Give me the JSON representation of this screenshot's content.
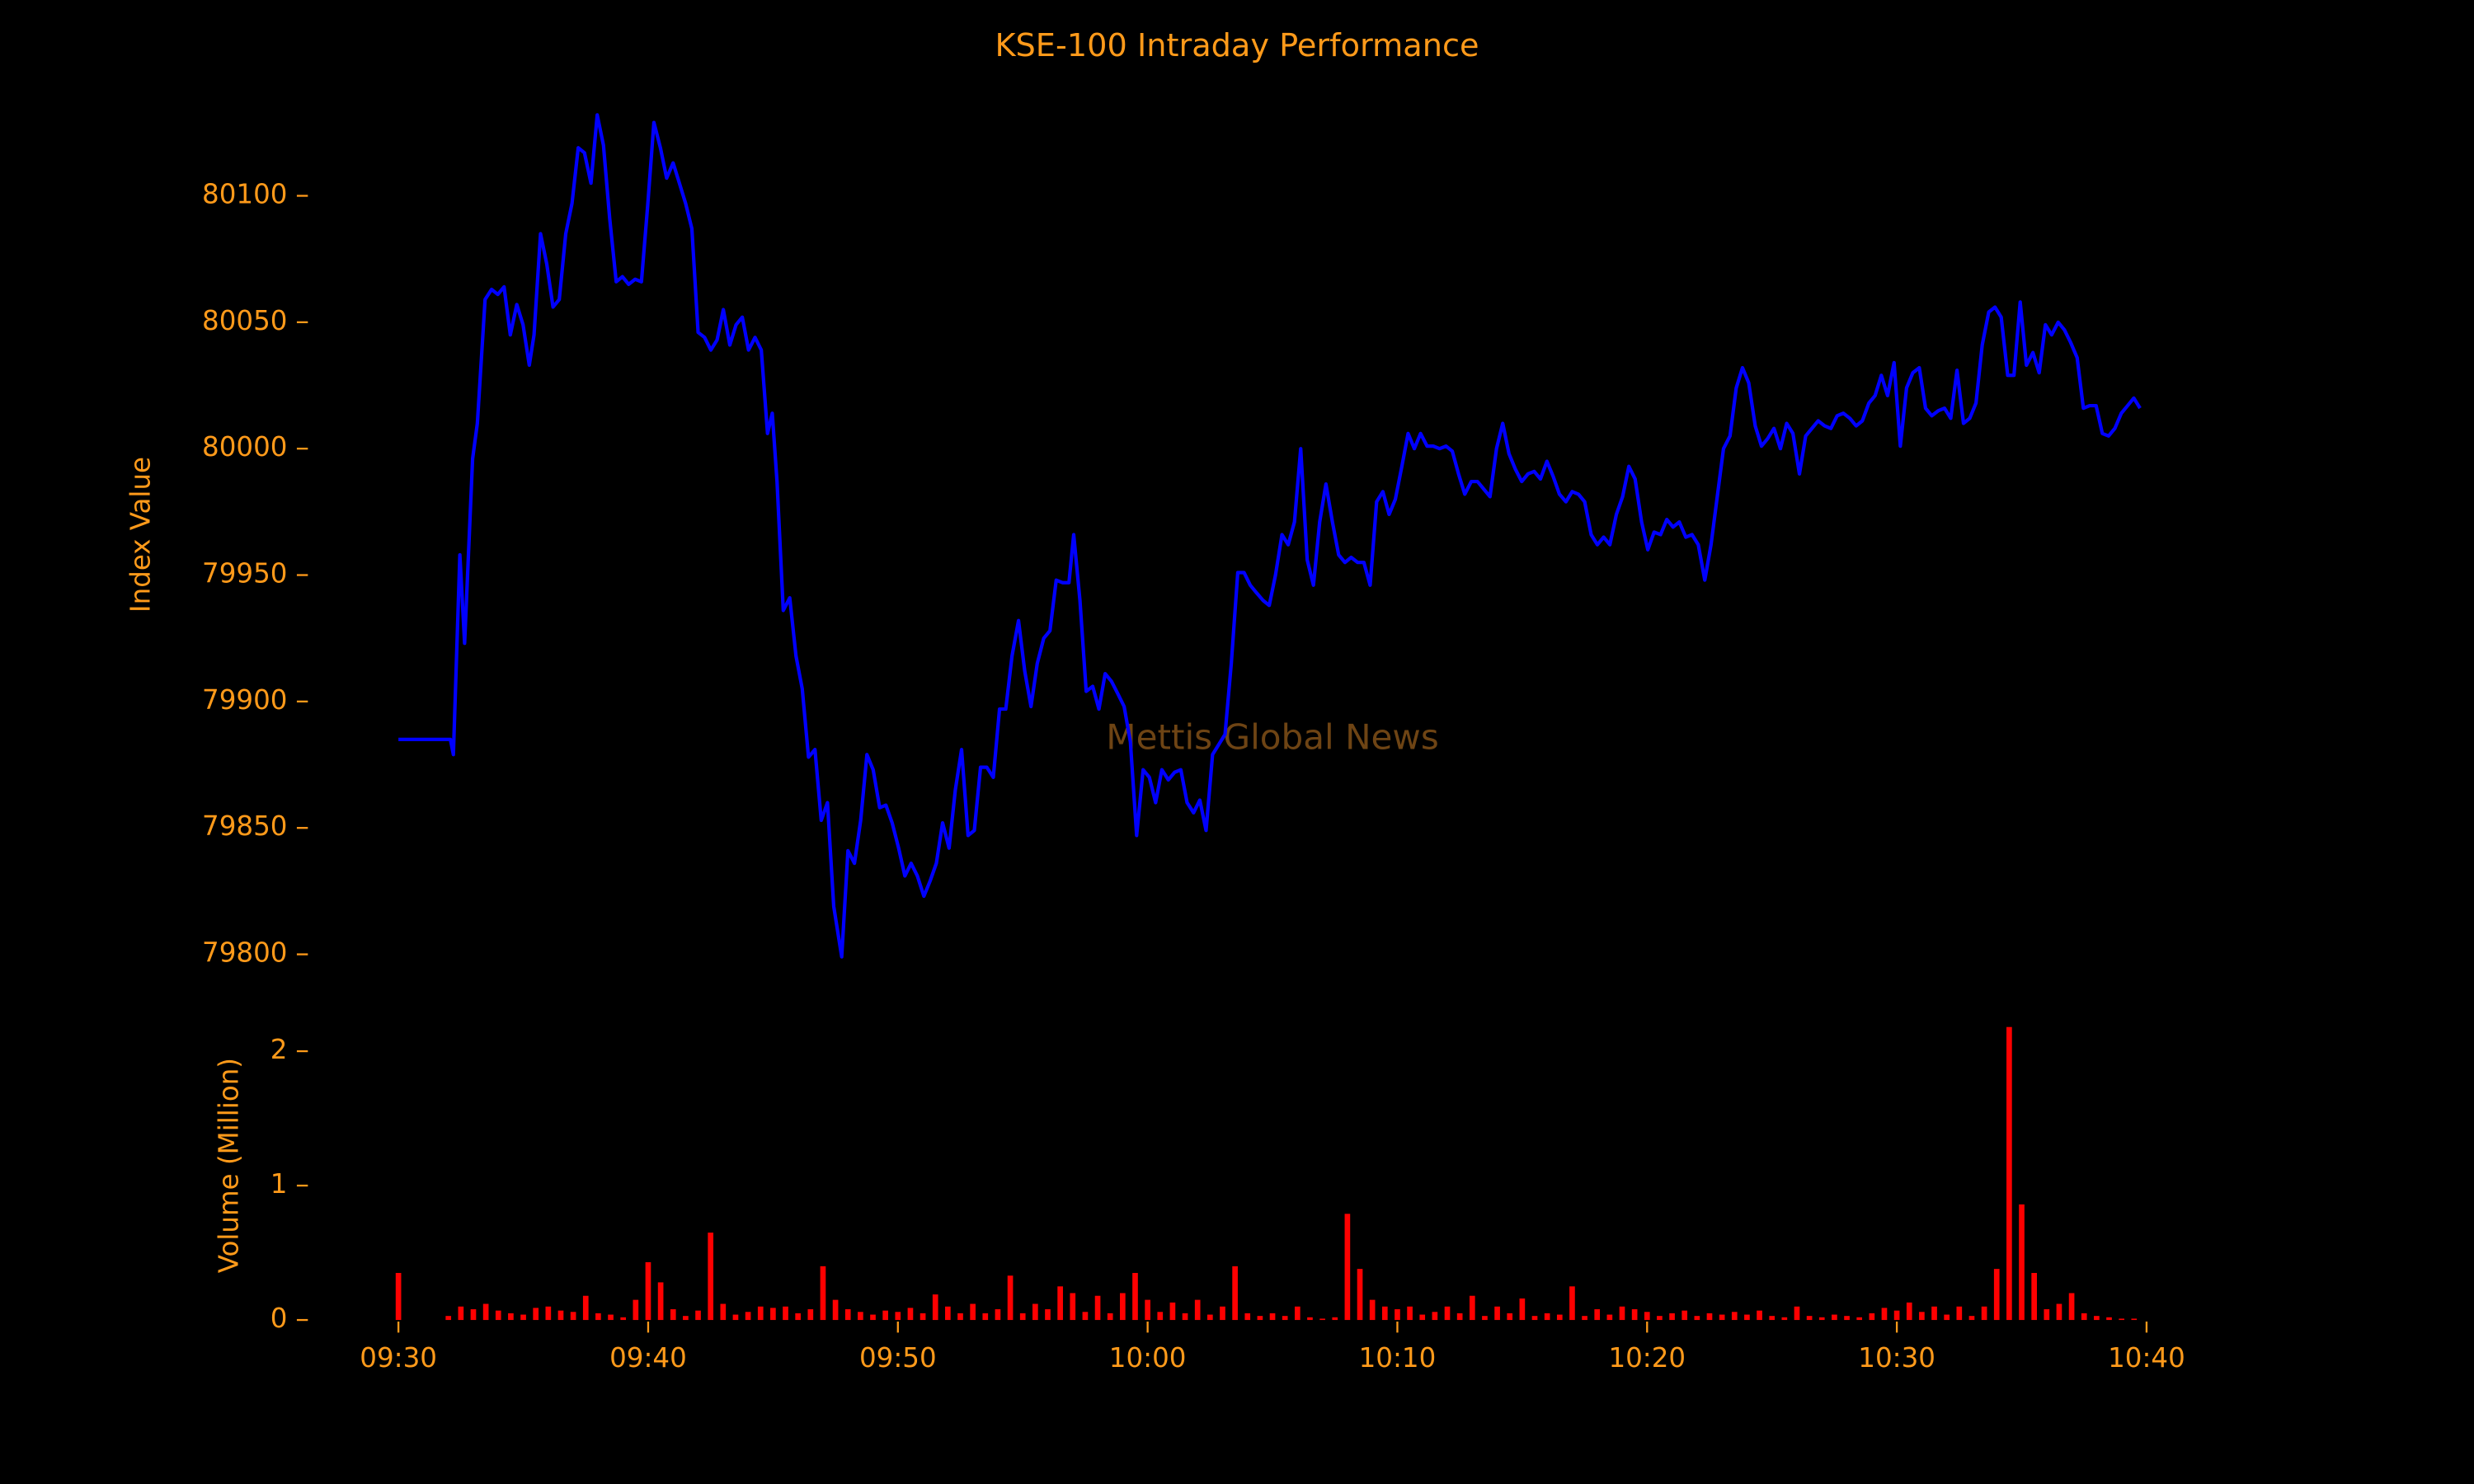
{
  "chart_data": [
    {
      "type": "line",
      "title": "KSE-100 Intraday Performance",
      "ylabel": "Index Value",
      "annotation": "Mettis Global News",
      "color": "#0000ff",
      "x": [
        0,
        2.08,
        2.2,
        2.46,
        2.65,
        2.97,
        3.16,
        3.47,
        3.73,
        3.98,
        4.23,
        4.48,
        4.74,
        4.99,
        5.24,
        5.43,
        5.69,
        5.94,
        6.19,
        6.44,
        6.7,
        6.95,
        7.2,
        7.45,
        7.71,
        7.96,
        8.21,
        8.46,
        8.72,
        8.97,
        9.22,
        9.48,
        9.73,
        9.98,
        10.23,
        10.49,
        10.74,
        11.0,
        11.25,
        11.5,
        11.75,
        12.0,
        12.26,
        12.51,
        12.76,
        13.01,
        13.27,
        13.52,
        13.77,
        14.02,
        14.28,
        14.53,
        14.78,
        14.97,
        15.16,
        15.41,
        15.67,
        15.92,
        16.17,
        16.42,
        16.68,
        16.93,
        17.18,
        17.43,
        17.75,
        18.0,
        18.26,
        18.51,
        18.76,
        19.01,
        19.27,
        19.52,
        19.77,
        20.03,
        20.28,
        20.53,
        20.78,
        21.04,
        21.29,
        21.54,
        21.79,
        22.05,
        22.3,
        22.55,
        22.81,
        23.06,
        23.31,
        23.56,
        23.82,
        24.07,
        24.32,
        24.57,
        24.83,
        25.08,
        25.33,
        25.58,
        25.84,
        26.09,
        26.34,
        26.59,
        26.85,
        27.04,
        27.29,
        27.54,
        27.8,
        28.05,
        28.3,
        28.55,
        28.81,
        29.06,
        29.31,
        29.56,
        29.82,
        30.07,
        30.32,
        30.57,
        30.83,
        31.08,
        31.33,
        31.58,
        31.84,
        32.09,
        32.34,
        32.6,
        32.85,
        33.1,
        33.35,
        33.61,
        33.86,
        34.11,
        34.36,
        34.62,
        34.87,
        35.12,
        35.38,
        35.63,
        35.88,
        36.13,
        36.39,
        36.64,
        36.89,
        37.14,
        37.4,
        37.65,
        37.9,
        38.15,
        38.41,
        38.66,
        38.91,
        39.17,
        39.42,
        39.67,
        39.92,
        40.18,
        40.43,
        40.68,
        40.93,
        41.19,
        41.44,
        41.69,
        41.95,
        42.2,
        42.45,
        42.7,
        42.96,
        43.21,
        43.46,
        43.71,
        43.97,
        44.22,
        44.47,
        44.72,
        44.98,
        45.23,
        45.48,
        45.73,
        45.99,
        46.24,
        46.49,
        46.75,
        47.0,
        47.25,
        47.5,
        47.76,
        48.01,
        48.26,
        48.51,
        48.77,
        49.02,
        49.27,
        49.52,
        49.78,
        50.03,
        50.28,
        50.54,
        50.79,
        51.04,
        51.29,
        51.55,
        51.8,
        52.05,
        52.31,
        52.56,
        52.81,
        53.06,
        53.32,
        53.57,
        53.82,
        54.07,
        54.33,
        54.58,
        54.83,
        55.08,
        55.34,
        55.59,
        55.84,
        56.1,
        56.35,
        56.6,
        56.85,
        57.11,
        57.36,
        57.61,
        57.86,
        58.12,
        58.37,
        58.62,
        58.88,
        59.13,
        59.38,
        59.63,
        59.89,
        60.14,
        60.39,
        60.64,
        60.9,
        61.15,
        61.4,
        61.66,
        61.91,
        62.16,
        62.41,
        62.67,
        62.92,
        63.17,
        63.42,
        63.68,
        63.93,
        64.18,
        64.44,
        64.69,
        64.94,
        65.19,
        65.45,
        65.7,
        65.95,
        66.2,
        66.46,
        66.71,
        66.96,
        67.22,
        67.47,
        67.72,
        67.98,
        68.23,
        68.48,
        68.73,
        68.99,
        69.24,
        69.49,
        69.74
      ],
      "values": [
        79885,
        79885,
        79879,
        79958,
        79923,
        79996,
        80010,
        80059,
        80063,
        80061,
        80064,
        80045,
        80057,
        80049,
        80033,
        80045,
        80085,
        80073,
        80056,
        80059,
        80085,
        80097,
        80119,
        80117,
        80105,
        80132,
        80120,
        80091,
        80066,
        80068,
        80065,
        80067,
        80066,
        80096,
        80129,
        80119,
        80107,
        80113,
        80105,
        80097,
        80087,
        80046,
        80044,
        80039,
        80043,
        80055,
        80041,
        80049,
        80052,
        80039,
        80044,
        80039,
        80006,
        80014,
        79987,
        79936,
        79941,
        79918,
        79905,
        79878,
        79881,
        79853,
        79860,
        79819,
        79799,
        79841,
        79836,
        79853,
        79879,
        79873,
        79858,
        79859,
        79852,
        79842,
        79831,
        79836,
        79831,
        79823,
        79829,
        79836,
        79852,
        79842,
        79865,
        79881,
        79847,
        79849,
        79874,
        79874,
        79870,
        79897,
        79897,
        79918,
        79932,
        79912,
        79898,
        79915,
        79925,
        79928,
        79948,
        79947,
        79947,
        79966,
        79940,
        79904,
        79906,
        79897,
        79911,
        79908,
        79903,
        79898,
        79884,
        79847,
        79873,
        79870,
        79860,
        79873,
        79869,
        79872,
        79873,
        79860,
        79856,
        79861,
        79849,
        79879,
        79883,
        79887,
        79915,
        79951,
        79951,
        79946,
        79943,
        79940,
        79938,
        79950,
        79966,
        79962,
        79971,
        80000,
        79956,
        79946,
        79971,
        79986,
        79971,
        79958,
        79955,
        79957,
        79955,
        79955,
        79946,
        79979,
        79983,
        79974,
        79980,
        79993,
        80006,
        80000,
        80006,
        80001,
        80001,
        80000,
        80001,
        79999,
        79990,
        79982,
        79987,
        79987,
        79984,
        79981,
        80000,
        80010,
        79998,
        79992,
        79987,
        79990,
        79991,
        79988,
        79995,
        79989,
        79982,
        79979,
        79983,
        79982,
        79979,
        79966,
        79962,
        79965,
        79962,
        79974,
        79981,
        79993,
        79988,
        79971,
        79960,
        79967,
        79966,
        79972,
        79969,
        79971,
        79965,
        79966,
        79962,
        79948,
        79962,
        79981,
        80000,
        80005,
        80024,
        80032,
        80026,
        80009,
        80001,
        80004,
        80008,
        80000,
        80010,
        80006,
        79990,
        80005,
        80008,
        80011,
        80009,
        80008,
        80013,
        80014,
        80012,
        80009,
        80011,
        80018,
        80021,
        80029,
        80021,
        80034,
        80001,
        80024,
        80030,
        80032,
        80016,
        80013,
        80015,
        80016,
        80012,
        80031,
        80010,
        80012,
        80018,
        80041,
        80054,
        80056,
        80052,
        80029,
        80029,
        80058,
        80033,
        80038,
        80030,
        80049,
        80045,
        80050,
        80047,
        80042,
        80036,
        80016,
        80017,
        80017,
        80006,
        80005,
        80008,
        80014,
        80017,
        80020,
        80016
      ],
      "xlim": [
        -3.5,
        73.5
      ],
      "ylim": [
        79782,
        80150
      ],
      "yticks": [
        79800,
        79850,
        79900,
        79950,
        80000,
        80050,
        80100
      ]
    },
    {
      "type": "bar",
      "ylabel": "Volume (Million)",
      "color": "#ff0000",
      "x": [
        0,
        0.5,
        1,
        1.5,
        2,
        2.5,
        3,
        3.5,
        4,
        4.5,
        5,
        5.5,
        6,
        6.5,
        7,
        7.5,
        8,
        8.5,
        9,
        9.5,
        10,
        10.5,
        11,
        11.5,
        12,
        12.5,
        13,
        13.5,
        14,
        14.5,
        15,
        15.5,
        16,
        16.5,
        17,
        17.5,
        18,
        18.5,
        19,
        19.5,
        20,
        20.5,
        21,
        21.5,
        22,
        22.5,
        23,
        23.5,
        24,
        24.5,
        25,
        25.5,
        26,
        26.5,
        27,
        27.5,
        28,
        28.5,
        29,
        29.5,
        30,
        30.5,
        31,
        31.5,
        32,
        32.5,
        33,
        33.5,
        34,
        34.5,
        35,
        35.5,
        36,
        36.5,
        37,
        37.5,
        38,
        38.5,
        39,
        39.5,
        40,
        40.5,
        41,
        41.5,
        42,
        42.5,
        43,
        43.5,
        44,
        44.5,
        45,
        45.5,
        46,
        46.5,
        47,
        47.5,
        48,
        48.5,
        49,
        49.5,
        50,
        50.5,
        51,
        51.5,
        52,
        52.5,
        53,
        53.5,
        54,
        54.5,
        55,
        55.5,
        56,
        56.5,
        57,
        57.5,
        58,
        58.5,
        59,
        59.5,
        60,
        60.5,
        61,
        61.5,
        62,
        62.5,
        63,
        63.5,
        64,
        64.5,
        65,
        65.5,
        66,
        66.5,
        67,
        67.5,
        68,
        68.5,
        69,
        69.5
      ],
      "values": [
        0.35,
        0,
        0,
        0,
        0.03,
        0.1,
        0.08,
        0.12,
        0.07,
        0.05,
        0.04,
        0.09,
        0.1,
        0.07,
        0.06,
        0.18,
        0.05,
        0.04,
        0.02,
        0.15,
        0.43,
        0.28,
        0.08,
        0.03,
        0.07,
        0.65,
        0.12,
        0.04,
        0.06,
        0.1,
        0.09,
        0.1,
        0.05,
        0.08,
        0.4,
        0.15,
        0.08,
        0.06,
        0.04,
        0.07,
        0.06,
        0.09,
        0.05,
        0.19,
        0.1,
        0.05,
        0.12,
        0.05,
        0.08,
        0.33,
        0.05,
        0.12,
        0.08,
        0.25,
        0.2,
        0.06,
        0.18,
        0.05,
        0.2,
        0.35,
        0.15,
        0.06,
        0.13,
        0.05,
        0.15,
        0.04,
        0.1,
        0.4,
        0.05,
        0.03,
        0.05,
        0.03,
        0.1,
        0.02,
        0.01,
        0.02,
        0.79,
        0.38,
        0.15,
        0.1,
        0.08,
        0.1,
        0.04,
        0.06,
        0.1,
        0.05,
        0.18,
        0.03,
        0.1,
        0.05,
        0.16,
        0.03,
        0.05,
        0.04,
        0.25,
        0.03,
        0.08,
        0.04,
        0.1,
        0.08,
        0.06,
        0.03,
        0.05,
        0.07,
        0.03,
        0.05,
        0.04,
        0.06,
        0.04,
        0.07,
        0.03,
        0.02,
        0.1,
        0.03,
        0.02,
        0.04,
        0.03,
        0.02,
        0.05,
        0.09,
        0.07,
        0.13,
        0.06,
        0.1,
        0.04,
        0.1,
        0.03,
        0.1,
        0.38,
        2.18,
        0.86,
        0.35,
        0.08,
        0.12,
        0.2,
        0.05,
        0.03,
        0.02,
        0.01,
        0.01
      ],
      "xlim": [
        -3.5,
        73.5
      ],
      "ylim": [
        0,
        2.3
      ],
      "yticks": [
        0,
        1,
        2
      ],
      "xticks": [
        {
          "value": 0,
          "label": "09:30"
        },
        {
          "value": 10,
          "label": "09:40"
        },
        {
          "value": 20,
          "label": "09:50"
        },
        {
          "value": 30,
          "label": "10:00"
        },
        {
          "value": 40,
          "label": "10:10"
        },
        {
          "value": 50,
          "label": "10:20"
        },
        {
          "value": 60,
          "label": "10:30"
        },
        {
          "value": 70,
          "label": "10:40"
        }
      ]
    }
  ]
}
